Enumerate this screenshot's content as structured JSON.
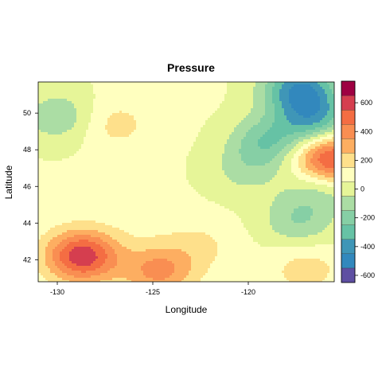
{
  "chart_data": {
    "type": "heatmap",
    "subtype": "filled-contour",
    "title": "Pressure",
    "xlabel": "Longitude",
    "ylabel": "Latitude",
    "xlim": [
      -131,
      -115.5
    ],
    "ylim": [
      40.8,
      51.7
    ],
    "x_ticks": [
      -130,
      -125,
      -120
    ],
    "x_tick_labels": [
      "-130",
      "-125",
      "-120"
    ],
    "y_ticks": [
      42,
      44,
      46,
      48,
      50
    ],
    "y_tick_labels": [
      "42",
      "44",
      "46",
      "48",
      "50"
    ],
    "colorbar": {
      "levels": [
        -650,
        -550,
        -450,
        -350,
        -250,
        -150,
        -50,
        50,
        150,
        250,
        350,
        450,
        550,
        650,
        750
      ],
      "colors": [
        "#5e4fa2",
        "#3288bd",
        "#3f96b7",
        "#66c2a5",
        "#86cfa5",
        "#abdda4",
        "#e6f598",
        "#ffffbf",
        "#fee08b",
        "#fdae61",
        "#f98e52",
        "#f46d43",
        "#d53e4f",
        "#9e0142"
      ],
      "ticks": [
        -600,
        -400,
        -200,
        0,
        200,
        400,
        600
      ],
      "tick_labels": [
        "-600",
        "-400",
        "-200",
        "0",
        "200",
        "400",
        "600"
      ]
    },
    "features": [
      {
        "kind": "high",
        "x": -128.7,
        "y": 42.2,
        "peak": 620
      },
      {
        "kind": "high",
        "x": -115.7,
        "y": 47.5,
        "peak": 640
      },
      {
        "kind": "high",
        "x": -124.7,
        "y": 41.4,
        "peak": 380
      },
      {
        "kind": "high",
        "x": -127.0,
        "y": 49.4,
        "peak": 190
      },
      {
        "kind": "high",
        "x": -122.5,
        "y": 42.8,
        "peak": 160
      },
      {
        "kind": "high",
        "x": -117.0,
        "y": 41.5,
        "peak": 200
      },
      {
        "kind": "high",
        "x": -125.5,
        "y": 44.5,
        "peak": 90
      },
      {
        "kind": "low",
        "x": -117.3,
        "y": 51.3,
        "peak": -430
      },
      {
        "kind": "low",
        "x": -116.5,
        "y": 49.6,
        "peak": -320
      },
      {
        "kind": "low",
        "x": -119.0,
        "y": 48.4,
        "peak": -230
      },
      {
        "kind": "low",
        "x": -129.9,
        "y": 49.8,
        "peak": -130
      },
      {
        "kind": "low",
        "x": -117.4,
        "y": 44.1,
        "peak": -140
      },
      {
        "kind": "low",
        "x": -116.2,
        "y": 46.0,
        "peak": -130
      },
      {
        "kind": "low",
        "x": -120.3,
        "y": 46.8,
        "peak": -60
      }
    ],
    "background": 60,
    "grid": false,
    "legend": "colorbar-right"
  }
}
